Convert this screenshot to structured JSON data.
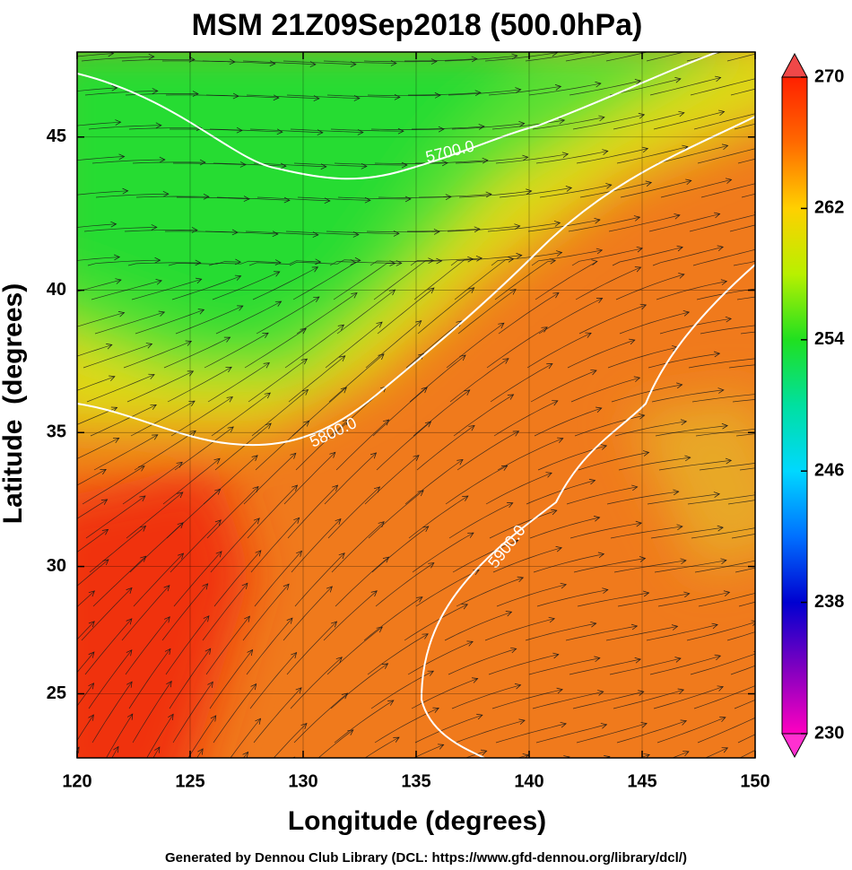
{
  "chart_data": {
    "type": "map",
    "title": "MSM 21Z09Sep2018 (500.0hPa)",
    "x_label": "Longitude (degrees)",
    "y_label": "Latitude  (degrees)",
    "xlim": [
      120,
      150
    ],
    "ylim": [
      22.4,
      47.6
    ],
    "xticks": [
      120,
      125,
      130,
      135,
      140,
      145,
      150
    ],
    "yticks": [
      25,
      30,
      35,
      40,
      45
    ],
    "colorbar_lim": [
      230,
      270
    ],
    "colorbar_ticks": [
      230,
      238,
      246,
      254,
      262,
      270
    ],
    "contour_labels": [
      {
        "value": 5700,
        "label": "5700.0"
      },
      {
        "value": 5800,
        "label": "5800.0"
      },
      {
        "value": 5900,
        "label": "5900.0"
      }
    ],
    "footer": "Generated by Dennou Club Library (DCL: https://www.gfd-dennou.org/library/dcl/)"
  }
}
